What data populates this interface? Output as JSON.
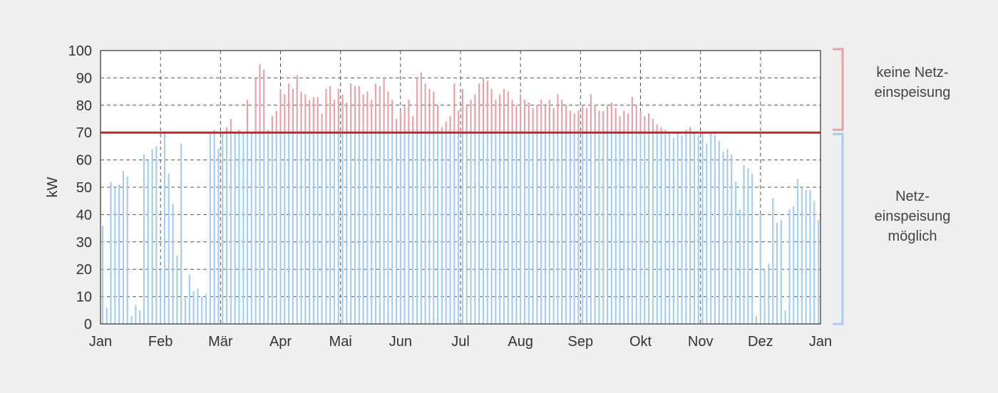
{
  "chart_data": {
    "type": "bar",
    "ylabel": "kW",
    "ylim": [
      0,
      100
    ],
    "yticks": [
      0,
      10,
      20,
      30,
      40,
      50,
      60,
      70,
      80,
      90,
      100
    ],
    "months": [
      "Jan",
      "Feb",
      "Mär",
      "Apr",
      "Mai",
      "Jun",
      "Jul",
      "Aug",
      "Sep",
      "Okt",
      "Nov",
      "Dez",
      "Jan"
    ],
    "grid": true,
    "grid_style": "dashed",
    "threshold": {
      "value": 70,
      "color": "#c0272d"
    },
    "colors": {
      "below": "#a7cdf0",
      "above": "#e6a3aa",
      "bracket_top": "#e2a3ab",
      "bracket_bottom": "#a9cdee"
    },
    "series": [
      {
        "resolution": "daily peak",
        "values": [
          36,
          6,
          52,
          50,
          51,
          56,
          54,
          3,
          7,
          5,
          62,
          60,
          64,
          65,
          20,
          70,
          55,
          44,
          25,
          66,
          10,
          18,
          12,
          13,
          10,
          11,
          70,
          71,
          64,
          70,
          72,
          75,
          70,
          71,
          70,
          82,
          70,
          90,
          95,
          93,
          71,
          76,
          78,
          86,
          84,
          88,
          86,
          91,
          85,
          84,
          82,
          83,
          83,
          77,
          86,
          87,
          82,
          86,
          84,
          81,
          88,
          87,
          87,
          84,
          85,
          82,
          88,
          87,
          90,
          85,
          82,
          75,
          78,
          80,
          82,
          76,
          90,
          92,
          88,
          86,
          85,
          80,
          72,
          74,
          76,
          88,
          78,
          86,
          80,
          82,
          84,
          88,
          90,
          89,
          86,
          82,
          84,
          86,
          85,
          82,
          80,
          84,
          82,
          81,
          79,
          80,
          82,
          80,
          82,
          79,
          84,
          82,
          80,
          78,
          77,
          78,
          80,
          79,
          84,
          80,
          78,
          78,
          80,
          81,
          79,
          76,
          78,
          77,
          83,
          80,
          78,
          76,
          77,
          75,
          73,
          72,
          71,
          70,
          68,
          70,
          69,
          71,
          72,
          70,
          69,
          70,
          66,
          70,
          69,
          67,
          63,
          64,
          62,
          52,
          42,
          58,
          57,
          55,
          3,
          40,
          20,
          22,
          46,
          37,
          38,
          5,
          42,
          43,
          53,
          50,
          49,
          49,
          45,
          38
        ]
      }
    ]
  },
  "bands": {
    "top_label": "keine Netz-\neinspeisung",
    "bottom_label": "Netz-\neinspeisung\nmöglich"
  }
}
